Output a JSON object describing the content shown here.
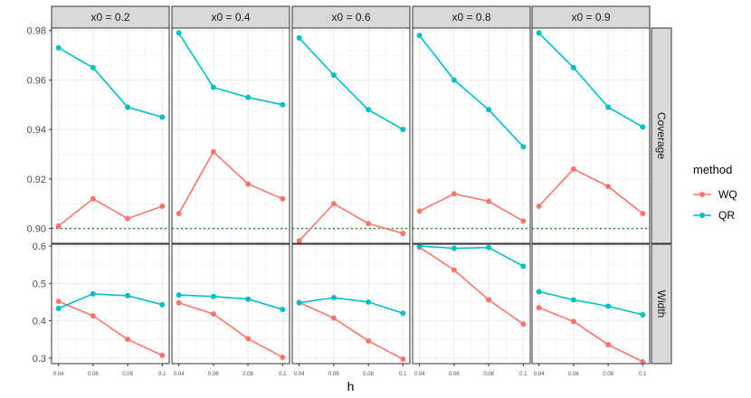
{
  "chart_data": {
    "type": "line",
    "xlabel": "h",
    "x": [
      0.04,
      0.06,
      0.08,
      0.1
    ],
    "x_tick_labels": [
      "0.04",
      "0.06",
      "0.08",
      "0.1"
    ],
    "legend": {
      "title": "method",
      "placement": "right",
      "entries": [
        {
          "name": "WQ",
          "color": "#F8766D"
        },
        {
          "name": "QR",
          "color": "#00BFC4"
        }
      ]
    },
    "column_facets": [
      "x0 = 0.2",
      "x0 = 0.4",
      "x0 = 0.6",
      "x0 = 0.8",
      "x0 = 0.9"
    ],
    "row_facets": [
      {
        "label": "Coverage",
        "ylim": [
          0.894,
          0.981
        ],
        "y_ticks": [
          0.9,
          0.92,
          0.94,
          0.96,
          0.98
        ],
        "y_tick_labels": [
          "0.90",
          "0.92",
          "0.94",
          "0.96",
          "0.98"
        ],
        "reference_line": 0.9,
        "reference_color": "#228B22",
        "series": {
          "WQ": [
            [
              0.901,
              0.912,
              0.904,
              0.909
            ],
            [
              0.906,
              0.931,
              0.918,
              0.912
            ],
            [
              0.895,
              0.91,
              0.902,
              0.898
            ],
            [
              0.907,
              0.914,
              0.911,
              0.903
            ],
            [
              0.909,
              0.924,
              0.917,
              0.906
            ]
          ],
          "QR": [
            [
              0.973,
              0.965,
              0.949,
              0.945
            ],
            [
              0.979,
              0.957,
              0.953,
              0.95
            ],
            [
              0.977,
              0.962,
              0.948,
              0.94
            ],
            [
              0.978,
              0.96,
              0.948,
              0.933
            ],
            [
              0.979,
              0.965,
              0.949,
              0.941
            ]
          ]
        }
      },
      {
        "label": "Width",
        "ylim": [
          0.285,
          0.605
        ],
        "y_ticks": [
          0.3,
          0.4,
          0.5,
          0.6
        ],
        "y_tick_labels": [
          "0.3",
          "0.4",
          "0.5",
          "0.6"
        ],
        "series": {
          "WQ": [
            [
              0.452,
              0.413,
              0.35,
              0.307
            ],
            [
              0.448,
              0.418,
              0.352,
              0.302
            ],
            [
              0.449,
              0.407,
              0.346,
              0.297
            ],
            [
              0.597,
              0.536,
              0.456,
              0.391
            ],
            [
              0.435,
              0.398,
              0.336,
              0.29
            ]
          ],
          "QR": [
            [
              0.433,
              0.472,
              0.467,
              0.443
            ],
            [
              0.469,
              0.465,
              0.458,
              0.43
            ],
            [
              0.448,
              0.462,
              0.45,
              0.42
            ],
            [
              0.6,
              0.594,
              0.596,
              0.546
            ],
            [
              0.478,
              0.456,
              0.439,
              0.416
            ]
          ]
        }
      }
    ],
    "grid": true,
    "colors": {
      "strip_fill": "#D9D9D9",
      "grid": "#EBEBEB",
      "axis_text": "#4D4D4D"
    }
  }
}
